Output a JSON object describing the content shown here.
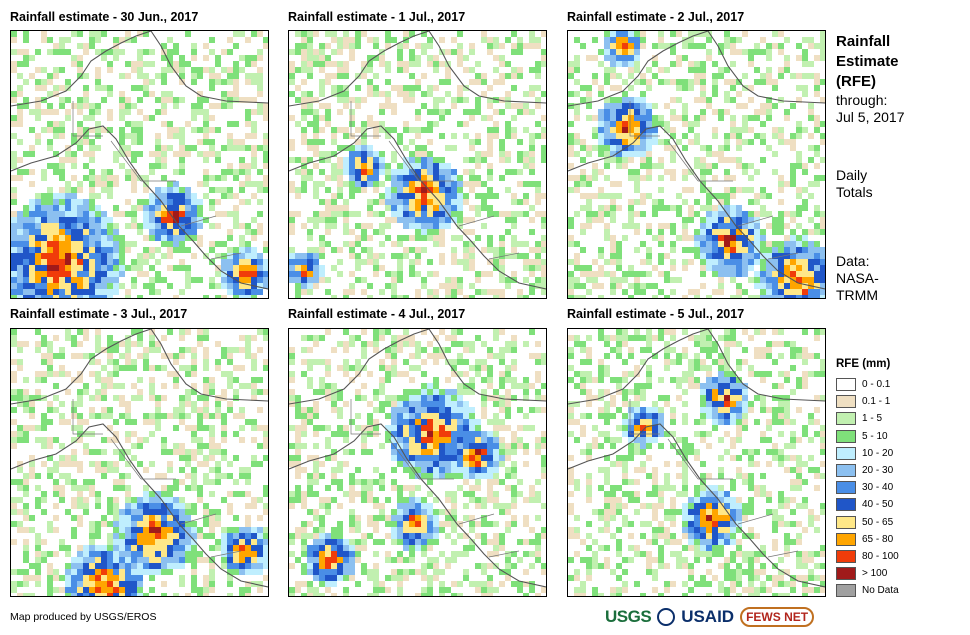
{
  "panels": [
    {
      "title": "Rainfall estimate - 30 Jun., 2017"
    },
    {
      "title": "Rainfall estimate - 1 Jul., 2017"
    },
    {
      "title": "Rainfall estimate - 2 Jul., 2017"
    },
    {
      "title": "Rainfall estimate - 3 Jul., 2017"
    },
    {
      "title": "Rainfall estimate - 4 Jul., 2017"
    },
    {
      "title": "Rainfall estimate - 5 Jul., 2017"
    }
  ],
  "side_info": {
    "title_line1": "Rainfall",
    "title_line2": "Estimate",
    "title_line3": "(RFE)",
    "through_label": "through:",
    "through_date": "Jul 5, 2017",
    "totals_line1": "Daily",
    "totals_line2": "Totals",
    "data_line1": "Data:",
    "data_line2": "NASA-",
    "data_line3": "TRMM"
  },
  "legend": {
    "title": "RFE (mm)",
    "items": [
      {
        "label": "0 - 0.1",
        "color": "#ffffff"
      },
      {
        "label": "0.1 - 1",
        "color": "#efdfc2"
      },
      {
        "label": "1 - 5",
        "color": "#c1f0b0"
      },
      {
        "label": "5 - 10",
        "color": "#7fe07a"
      },
      {
        "label": "10 - 20",
        "color": "#bfeefe"
      },
      {
        "label": "20 - 30",
        "color": "#8cc0f0"
      },
      {
        "label": "30 - 40",
        "color": "#4a8ee6"
      },
      {
        "label": "40 - 50",
        "color": "#2056c8"
      },
      {
        "label": "50 - 65",
        "color": "#ffe888"
      },
      {
        "label": "65 - 80",
        "color": "#ffa500"
      },
      {
        "label": "80 - 100",
        "color": "#f03c0a"
      },
      {
        "label": "> 100",
        "color": "#a01a1a"
      },
      {
        "label": "No Data",
        "color": "#a0a0a0"
      }
    ]
  },
  "footer": {
    "credit": "Map produced by USGS/EROS",
    "logo_usgs": "USGS",
    "logo_usaid": "USAID",
    "logo_fews": "FEWS NET"
  }
}
